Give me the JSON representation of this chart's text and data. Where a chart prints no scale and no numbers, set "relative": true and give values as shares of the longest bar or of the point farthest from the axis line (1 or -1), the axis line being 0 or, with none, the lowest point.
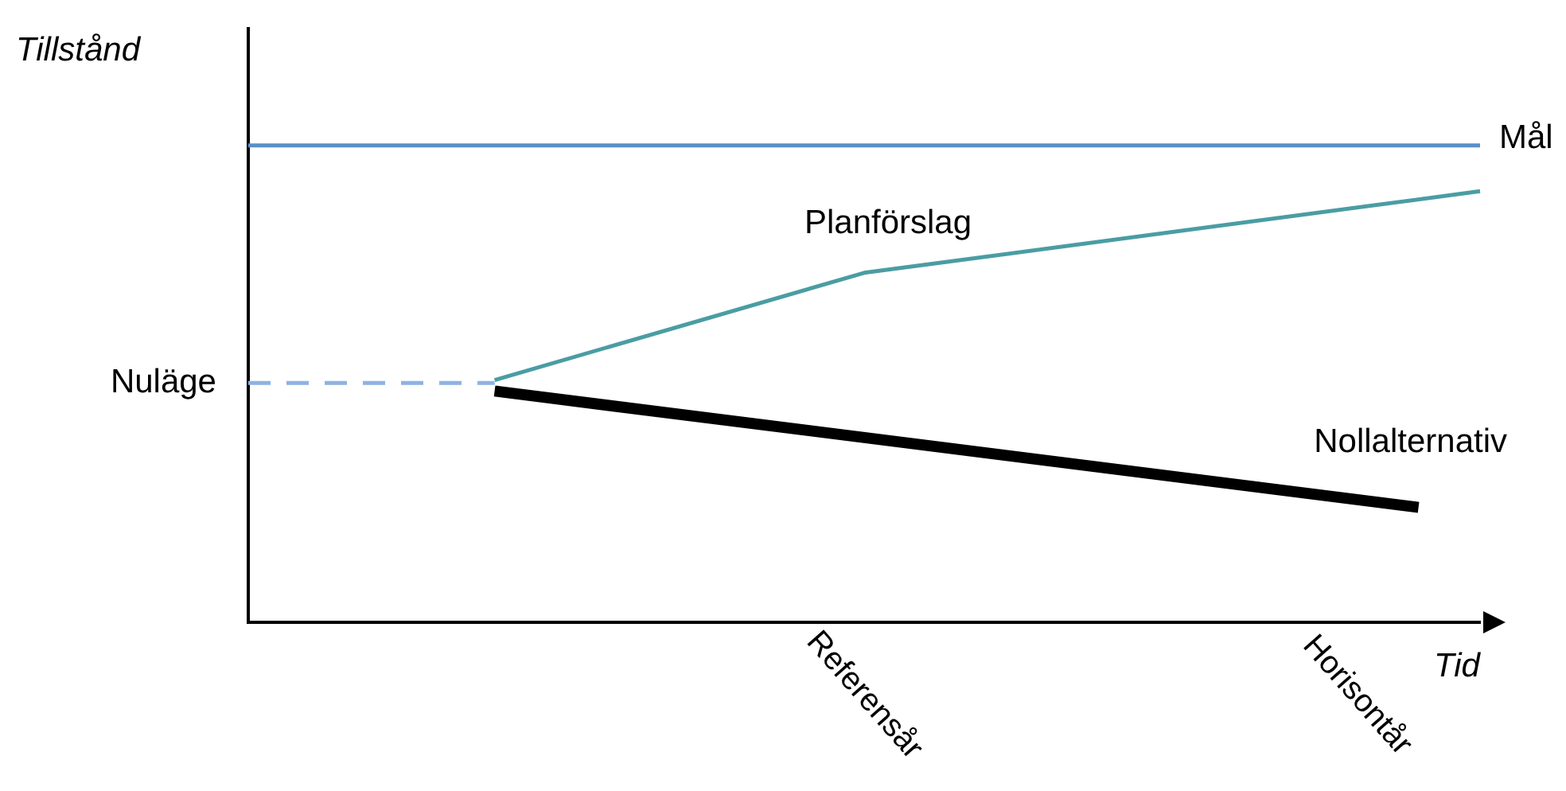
{
  "chart_data": {
    "type": "line",
    "relative": true,
    "xlabel": "Tid",
    "ylabel": "Tillstånd",
    "legend": false,
    "grid": false,
    "marker": "none",
    "categories": [
      null,
      null,
      null,
      null,
      null,
      null,
      null,
      null,
      null,
      null,
      "Referensår",
      null,
      null,
      null,
      null,
      null,
      null,
      null,
      "Horisontår",
      null,
      null
    ],
    "series": [
      {
        "name": "Mål",
        "color": "#5b8fc7",
        "values": [
          1,
          null,
          null,
          null,
          null,
          null,
          null,
          null,
          null,
          null,
          null,
          null,
          null,
          null,
          null,
          null,
          null,
          null,
          null,
          null,
          1
        ]
      },
      {
        "name": "Planförslag",
        "color": "#4a9da3",
        "values": [
          null,
          null,
          null,
          null,
          0.508,
          null,
          null,
          null,
          null,
          null,
          0.733,
          null,
          null,
          null,
          null,
          null,
          null,
          null,
          null,
          null,
          0.904
        ]
      },
      {
        "name": "Nollalternativ",
        "color": "#000000",
        "values": [
          null,
          null,
          null,
          null,
          0.485,
          null,
          null,
          null,
          null,
          null,
          null,
          null,
          null,
          null,
          null,
          null,
          null,
          null,
          null,
          0.241,
          null
        ]
      },
      {
        "name": "Nuläge",
        "color": "#8db3e2",
        "line_style": "dashed",
        "values": [
          0.502,
          null,
          null,
          null,
          0.502,
          null,
          null,
          null,
          null,
          null,
          null,
          null,
          null,
          null,
          null,
          null,
          null,
          null,
          null,
          null,
          null
        ]
      }
    ]
  }
}
